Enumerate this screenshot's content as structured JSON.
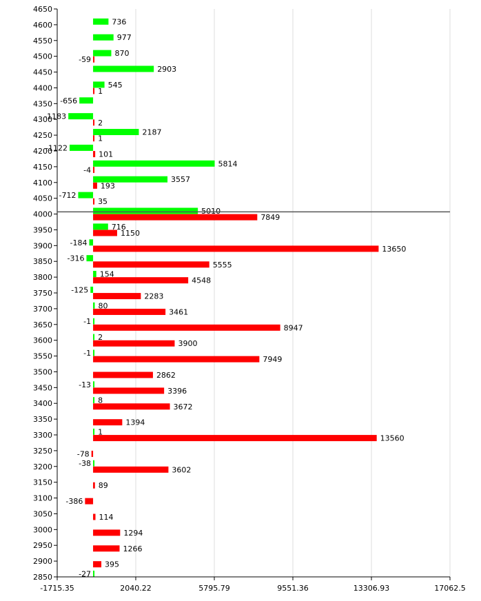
{
  "chart_data": {
    "type": "bar",
    "orientation": "horizontal",
    "grid": true,
    "xlim": [
      -1715.35,
      17062.5
    ],
    "x_ticks": [
      "-1715.35",
      "2040.22",
      "5795.79",
      "9551.36",
      "13306.93",
      "17062.5"
    ],
    "ylim": [
      2850,
      4650
    ],
    "y_ticks": [
      "4650",
      "4600",
      "4550",
      "4500",
      "4450",
      "4400",
      "4350",
      "4300",
      "4250",
      "4200",
      "4150",
      "4100",
      "4050",
      "4000",
      "3950",
      "3900",
      "3850",
      "3800",
      "3750",
      "3700",
      "3650",
      "3600",
      "3550",
      "3500",
      "3450",
      "3400",
      "3350",
      "3300",
      "3250",
      "3200",
      "3150",
      "3100",
      "3050",
      "3000",
      "2950",
      "2900",
      "2850"
    ],
    "reference_line_y": 4007,
    "series": [
      {
        "color": "#00ff00",
        "points": [
          {
            "y": 4610,
            "value": 736
          },
          {
            "y": 4560,
            "value": 977
          },
          {
            "y": 4510,
            "value": 870
          },
          {
            "y": 4460,
            "value": 2903
          },
          {
            "y": 4410,
            "value": 545
          },
          {
            "y": 4360,
            "value": -656
          },
          {
            "y": 4310,
            "value": -1183
          },
          {
            "y": 4260,
            "value": 2187
          },
          {
            "y": 4210,
            "value": -1122
          },
          {
            "y": 4160,
            "value": 5814
          },
          {
            "y": 4110,
            "value": 3557
          },
          {
            "y": 4060,
            "value": -712
          },
          {
            "y": 4010,
            "value": 5010
          },
          {
            "y": 3960,
            "value": 716
          },
          {
            "y": 3910,
            "value": -184
          },
          {
            "y": 3860,
            "value": -316
          },
          {
            "y": 3810,
            "value": 154
          },
          {
            "y": 3760,
            "value": -125
          },
          {
            "y": 3710,
            "value": 80
          },
          {
            "y": 3660,
            "value": -1
          },
          {
            "y": 3610,
            "value": 2
          },
          {
            "y": 3560,
            "value": -1
          },
          {
            "y": 3460,
            "value": -13
          },
          {
            "y": 3410,
            "value": 8
          },
          {
            "y": 3310,
            "value": 1
          },
          {
            "y": 3210,
            "value": -38
          },
          {
            "y": 2860,
            "value": -27
          }
        ]
      },
      {
        "color": "#ff0000",
        "points": [
          {
            "y": 4490,
            "value": -59
          },
          {
            "y": 4390,
            "value": 1
          },
          {
            "y": 4290,
            "value": 2
          },
          {
            "y": 4240,
            "value": 1
          },
          {
            "y": 4190,
            "value": 101
          },
          {
            "y": 4140,
            "value": -4
          },
          {
            "y": 4090,
            "value": 193
          },
          {
            "y": 4040,
            "value": 35
          },
          {
            "y": 3990,
            "value": 7849
          },
          {
            "y": 3940,
            "value": 1150
          },
          {
            "y": 3890,
            "value": 13650
          },
          {
            "y": 3840,
            "value": 5555
          },
          {
            "y": 3790,
            "value": 4548
          },
          {
            "y": 3740,
            "value": 2283
          },
          {
            "y": 3690,
            "value": 3461
          },
          {
            "y": 3640,
            "value": 8947
          },
          {
            "y": 3590,
            "value": 3900
          },
          {
            "y": 3540,
            "value": 7949
          },
          {
            "y": 3490,
            "value": 2862
          },
          {
            "y": 3440,
            "value": 3396
          },
          {
            "y": 3390,
            "value": 3672
          },
          {
            "y": 3340,
            "value": 1394
          },
          {
            "y": 3290,
            "value": 13560
          },
          {
            "y": 3240,
            "value": -78
          },
          {
            "y": 3190,
            "value": 3602
          },
          {
            "y": 3140,
            "value": 89
          },
          {
            "y": 3090,
            "value": -386
          },
          {
            "y": 3040,
            "value": 114
          },
          {
            "y": 2990,
            "value": 1294
          },
          {
            "y": 2940,
            "value": 1266
          },
          {
            "y": 2890,
            "value": 395
          }
        ]
      }
    ]
  }
}
